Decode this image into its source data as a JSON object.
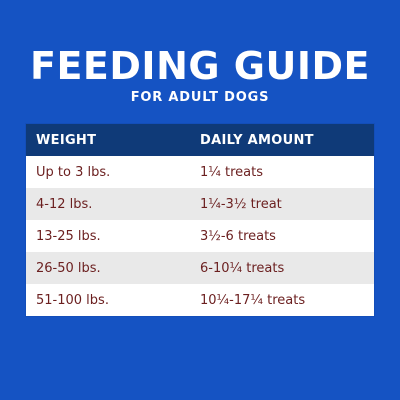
{
  "title": "FEEDING GUIDE",
  "subtitle": "FOR ADULT DOGS",
  "table": {
    "headers": [
      "WEIGHT",
      "DAILY AMOUNT"
    ],
    "rows": [
      {
        "weight": "Up to 3 lbs.",
        "amount": "1¼ treats"
      },
      {
        "weight": "4-12 lbs.",
        "amount": "1¼-3½ treat"
      },
      {
        "weight": "13-25 lbs.",
        "amount": "3½-6 treats"
      },
      {
        "weight": "26-50 lbs.",
        "amount": "6-10¼ treats"
      },
      {
        "weight": "51-100 lbs.",
        "amount": "10¼-17¼ treats"
      }
    ]
  },
  "colors": {
    "background": "#1553c3",
    "header_bg": "#0f3a78",
    "row_alt_bg": "#e9e9e9",
    "row_text": "#6b1f1f",
    "title_text": "#ffffff"
  }
}
